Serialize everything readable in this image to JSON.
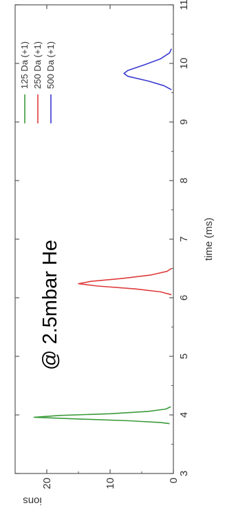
{
  "chart_data": {
    "type": "line",
    "title": "",
    "xlabel": "time (ms)",
    "ylabel": "ions",
    "xlim": [
      3,
      11
    ],
    "ylim": [
      0,
      25
    ],
    "x_ticks": [
      3,
      4,
      5,
      6,
      7,
      8,
      9,
      10,
      11
    ],
    "y_ticks": [
      0,
      10,
      20
    ],
    "annotation": "@ 2.5mbar He",
    "legend_position": "top-right",
    "series": [
      {
        "name": "125 Da (+1)",
        "color": "#3a9a3a",
        "points": [
          [
            3.85,
            0.6
          ],
          [
            3.87,
            2.0
          ],
          [
            3.9,
            7.0
          ],
          [
            3.93,
            15.0
          ],
          [
            3.96,
            22.0
          ],
          [
            3.99,
            18.0
          ],
          [
            4.02,
            10.0
          ],
          [
            4.06,
            4.0
          ],
          [
            4.1,
            1.2
          ],
          [
            4.14,
            0.4
          ]
        ]
      },
      {
        "name": "250 Da (+1)",
        "color": "#e03a3a",
        "points": [
          [
            6.05,
            0.3
          ],
          [
            6.1,
            2.0
          ],
          [
            6.15,
            6.0
          ],
          [
            6.2,
            12.0
          ],
          [
            6.24,
            15.0
          ],
          [
            6.28,
            13.0
          ],
          [
            6.33,
            8.0
          ],
          [
            6.39,
            3.5
          ],
          [
            6.45,
            1.0
          ],
          [
            6.5,
            0.3
          ]
        ]
      },
      {
        "name": "500 Da (+1)",
        "color": "#3a3ad0",
        "points": [
          [
            9.55,
            0.3
          ],
          [
            9.62,
            1.5
          ],
          [
            9.7,
            4.0
          ],
          [
            9.78,
            7.2
          ],
          [
            9.83,
            7.8
          ],
          [
            9.88,
            7.2
          ],
          [
            9.98,
            4.5
          ],
          [
            10.08,
            2.0
          ],
          [
            10.18,
            0.6
          ],
          [
            10.25,
            0.3
          ]
        ]
      }
    ]
  }
}
